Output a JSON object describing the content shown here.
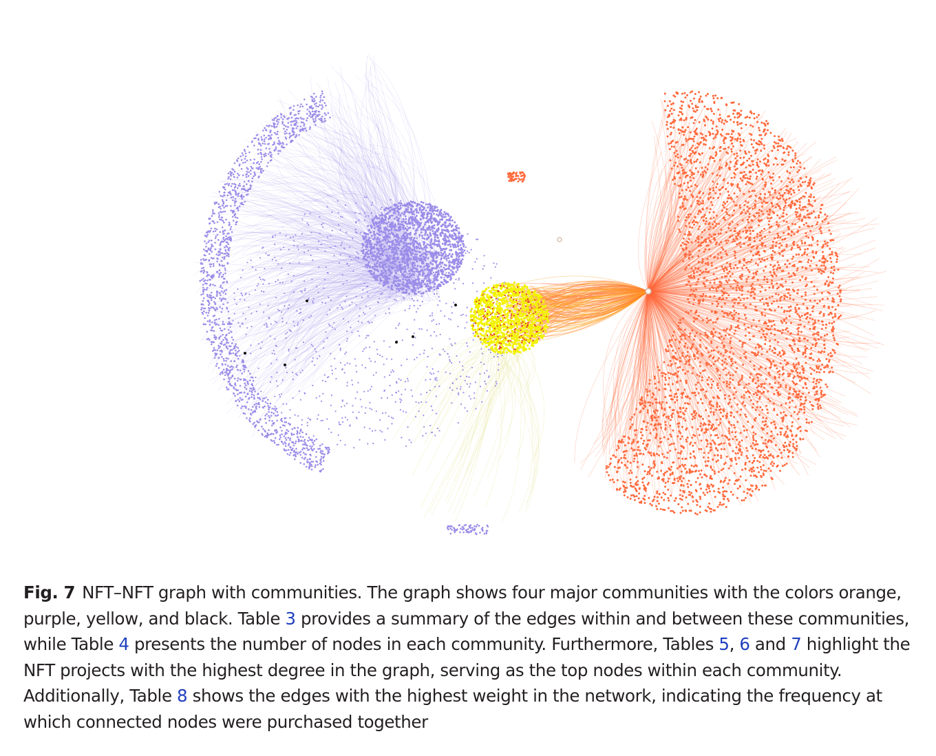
{
  "figure": {
    "communities": [
      {
        "name": "orange",
        "color": "#ff6a3d"
      },
      {
        "name": "purple",
        "color": "#9b8de8"
      },
      {
        "name": "yellow",
        "color": "#f2f200"
      },
      {
        "name": "black",
        "color": "#111111"
      }
    ]
  },
  "caption": {
    "label": "Fig. 7",
    "p1": "NFT–NFT graph with communities. The graph shows four major communities with the colors orange, purple, yellow, and black. Table ",
    "ref1": "3",
    "p2": " provides a summary of the edges within and between these communities, while Table ",
    "ref2": "4",
    "p3": " presents the number of nodes in each community. Furthermore, Tables ",
    "ref3": "5",
    "p4": ", ",
    "ref4": "6",
    "p5": " and ",
    "ref5": "7",
    "p6": " highlight the NFT projects with the highest degree in the graph, serving as the top nodes within each community. Additionally, Table ",
    "ref6": "8",
    "p7": " shows the edges with the highest weight in the network, indicating the frequency at which connected nodes were purchased together"
  }
}
